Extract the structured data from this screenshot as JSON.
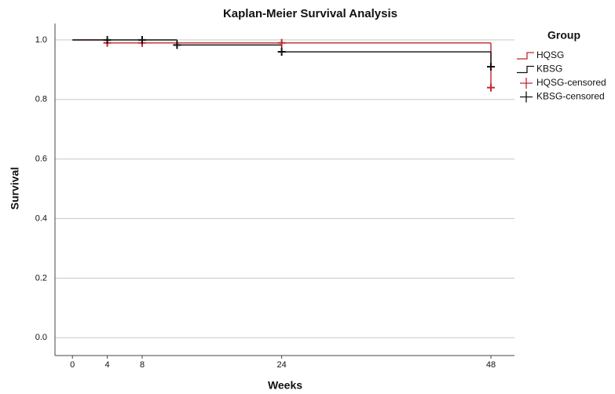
{
  "chart_data": {
    "type": "step",
    "title": "Kaplan-Meier Survival Analysis",
    "x_label": "Weeks",
    "y_label": "Survival",
    "legend_title": "Group",
    "legend": "right",
    "grid": true,
    "xlim": [
      -2,
      50.7
    ],
    "ylim": [
      -0.06,
      1.055
    ],
    "xticks": [
      0,
      4,
      8,
      24,
      48
    ],
    "yticks": [
      {
        "value": 0,
        "label": "0.0"
      },
      {
        "value": 0.2,
        "label": "0.2"
      },
      {
        "value": 0.4,
        "label": "0.4"
      },
      {
        "value": 0.6,
        "label": "0.6"
      },
      {
        "value": 0.8,
        "label": "0.8"
      },
      {
        "value": 1,
        "label": "1.0"
      }
    ],
    "series": [
      {
        "name": "HQSG",
        "color": "#c0282d",
        "style": "step",
        "x": [
          0,
          4,
          48
        ],
        "values": [
          1,
          0.99,
          0.84
        ]
      },
      {
        "name": "KBSG",
        "color": "#111111",
        "style": "step",
        "x": [
          0,
          12,
          24,
          48
        ],
        "values": [
          1,
          0.983,
          0.96,
          0.91
        ]
      },
      {
        "name": "HQSG-censored",
        "color": "#c0282d",
        "style": "censored",
        "x": [
          4,
          8,
          24,
          48
        ],
        "values": [
          0.99,
          0.99,
          0.99,
          0.84
        ]
      },
      {
        "name": "KBSG-censored",
        "color": "#111111",
        "style": "censored",
        "x": [
          4,
          8,
          12,
          24,
          48
        ],
        "values": [
          1,
          1,
          0.983,
          0.96,
          0.91
        ]
      }
    ]
  }
}
